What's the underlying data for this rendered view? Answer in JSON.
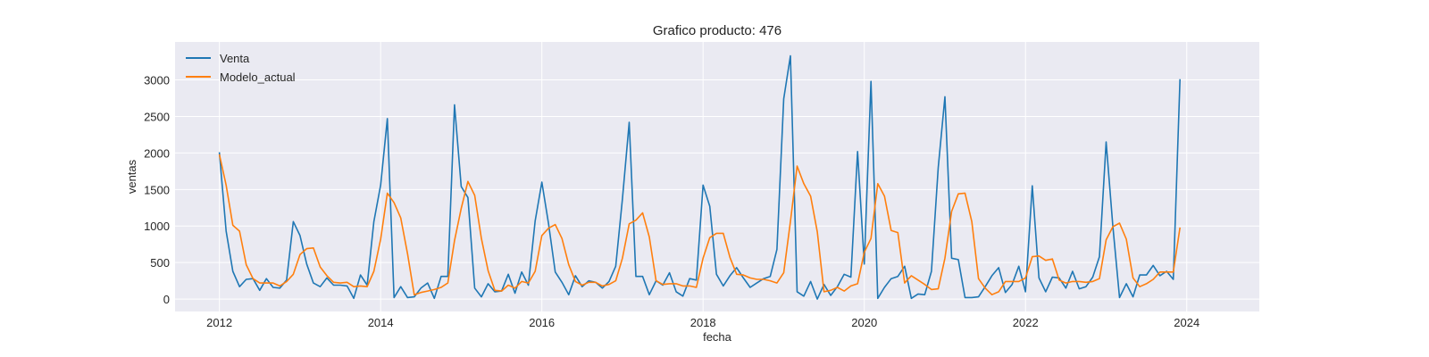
{
  "chart_data": {
    "type": "line",
    "title": "Grafico producto: 476",
    "xlabel": "fecha",
    "ylabel": "ventas",
    "xlim": [
      2011.45,
      2024.9
    ],
    "ylim": [
      -170,
      3520
    ],
    "xticks": [
      2012,
      2014,
      2016,
      2018,
      2020,
      2022,
      2024
    ],
    "xtick_labels": [
      "2012",
      "2014",
      "2016",
      "2018",
      "2020",
      "2022",
      "2024"
    ],
    "yticks": [
      0,
      500,
      1000,
      1500,
      2000,
      2500,
      3000
    ],
    "ytick_labels": [
      "0",
      "500",
      "1000",
      "1500",
      "2000",
      "2500",
      "3000"
    ],
    "grid": true,
    "legend_position": "top-left",
    "x_description": "monthly dates from January 2012 to December 2023 (decimal years)",
    "x_start": 2012.0,
    "x_step": 0.0833333,
    "series": [
      {
        "name": "Venta",
        "color": "#1f77b4",
        "values": [
          2010,
          930,
          380,
          170,
          270,
          280,
          120,
          280,
          160,
          150,
          260,
          1060,
          870,
          480,
          220,
          170,
          290,
          190,
          190,
          180,
          10,
          330,
          190,
          1060,
          1560,
          2470,
          20,
          170,
          20,
          30,
          150,
          220,
          10,
          310,
          310,
          2660,
          1540,
          1390,
          150,
          30,
          210,
          100,
          110,
          340,
          80,
          370,
          190,
          1070,
          1600,
          1030,
          370,
          230,
          60,
          320,
          170,
          250,
          230,
          150,
          240,
          450,
          1370,
          2420,
          310,
          310,
          60,
          250,
          190,
          360,
          100,
          40,
          280,
          260,
          1560,
          1270,
          340,
          180,
          320,
          430,
          290,
          160,
          220,
          280,
          310,
          680,
          2740,
          3330,
          100,
          40,
          240,
          0,
          200,
          50,
          170,
          340,
          300,
          2020,
          480,
          2980,
          10,
          160,
          280,
          310,
          450,
          10,
          70,
          60,
          380,
          1800,
          2770,
          560,
          540,
          20,
          20,
          30,
          170,
          320,
          430,
          90,
          200,
          450,
          100,
          1550,
          290,
          100,
          300,
          290,
          150,
          380,
          140,
          170,
          300,
          580,
          2150,
          1000,
          20,
          210,
          30,
          330,
          330,
          460,
          320,
          380,
          270,
          3010
        ]
      },
      {
        "name": "Modelo_actual",
        "color": "#ff7f0e",
        "values": [
          1980,
          1560,
          1010,
          930,
          470,
          280,
          220,
          220,
          220,
          180,
          240,
          340,
          610,
          690,
          700,
          440,
          320,
          230,
          220,
          230,
          170,
          180,
          170,
          380,
          820,
          1450,
          1320,
          1110,
          620,
          60,
          90,
          110,
          130,
          160,
          220,
          800,
          1240,
          1610,
          1420,
          830,
          390,
          120,
          110,
          190,
          150,
          240,
          220,
          380,
          870,
          970,
          1020,
          830,
          470,
          240,
          190,
          230,
          230,
          180,
          200,
          250,
          560,
          1030,
          1080,
          1180,
          850,
          250,
          200,
          210,
          210,
          180,
          180,
          160,
          560,
          840,
          900,
          900,
          570,
          340,
          330,
          290,
          270,
          270,
          250,
          220,
          360,
          1060,
          1820,
          1580,
          1410,
          920,
          100,
          120,
          160,
          110,
          180,
          210,
          640,
          830,
          1580,
          1410,
          940,
          910,
          220,
          320,
          260,
          200,
          130,
          140,
          560,
          1200,
          1440,
          1450,
          1060,
          280,
          150,
          60,
          100,
          240,
          240,
          240,
          290,
          580,
          590,
          530,
          550,
          260,
          220,
          240,
          240,
          230,
          240,
          280,
          810,
          990,
          1040,
          820,
          290,
          170,
          210,
          270,
          370,
          370,
          370,
          980
        ]
      }
    ]
  }
}
